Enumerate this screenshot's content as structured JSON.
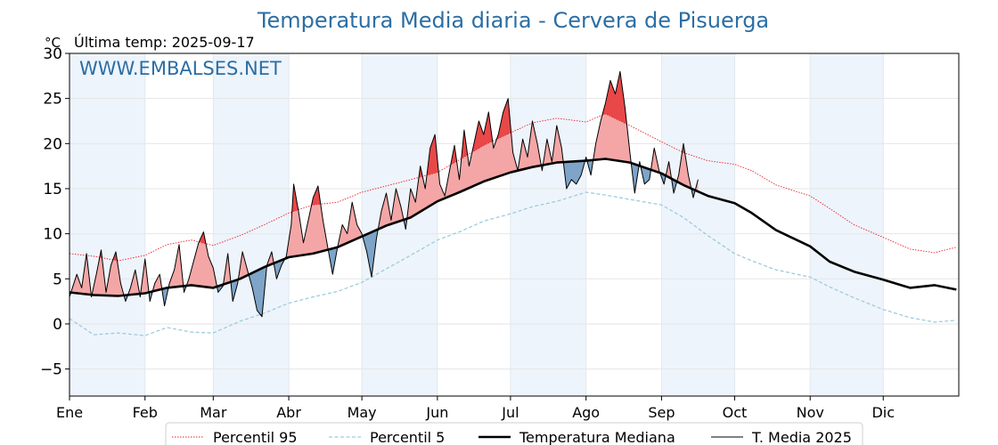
{
  "chart_data": {
    "type": "line",
    "title": "Temperatura Media diaria - Cervera de Pisuerga",
    "unit_label": "°C",
    "subtitle": "Última temp: 2025-09-17",
    "watermark": "WWW.EMBALSES.NET",
    "ylim": [
      -8,
      30
    ],
    "yticks": [
      "−5",
      "0",
      "5",
      "10",
      "15",
      "20",
      "25",
      "30"
    ],
    "ytick_values": [
      -5,
      0,
      5,
      10,
      15,
      20,
      25,
      30
    ],
    "months": [
      "Ene",
      "Feb",
      "Mar",
      "Abr",
      "May",
      "Jun",
      "Jul",
      "Ago",
      "Sep",
      "Oct",
      "Nov",
      "Dic"
    ],
    "month_start_days": [
      0,
      31,
      59,
      90,
      120,
      151,
      181,
      212,
      243,
      273,
      304,
      334
    ],
    "grid": true,
    "legend_position": "bottom",
    "colors": {
      "p95": "#e8202a",
      "p5": "#9ccce0",
      "median": "#000000",
      "current": "#000000",
      "above_fill": "#f4a6a6",
      "above_fill_p95": "#e84848",
      "below_fill": "#7ea4c8",
      "below_fill_p5": "#1e4c88",
      "title": "#2b6ea4",
      "band": "#eef4fb"
    },
    "series": [
      {
        "name": "Percentil 95",
        "style": "dotted-red",
        "points": [
          [
            0,
            7.8
          ],
          [
            10,
            7.5
          ],
          [
            20,
            7.0
          ],
          [
            31,
            7.6
          ],
          [
            40,
            8.8
          ],
          [
            50,
            9.3
          ],
          [
            59,
            8.7
          ],
          [
            70,
            9.8
          ],
          [
            80,
            11.0
          ],
          [
            90,
            12.3
          ],
          [
            100,
            13.2
          ],
          [
            110,
            13.5
          ],
          [
            120,
            14.6
          ],
          [
            130,
            15.3
          ],
          [
            140,
            16.0
          ],
          [
            151,
            16.8
          ],
          [
            160,
            18.2
          ],
          [
            170,
            19.8
          ],
          [
            181,
            21.2
          ],
          [
            190,
            22.3
          ],
          [
            200,
            22.8
          ],
          [
            212,
            22.4
          ],
          [
            220,
            23.3
          ],
          [
            230,
            22.0
          ],
          [
            243,
            20.2
          ],
          [
            252,
            19.0
          ],
          [
            262,
            18.1
          ],
          [
            273,
            17.7
          ],
          [
            280,
            17.0
          ],
          [
            290,
            15.4
          ],
          [
            304,
            14.2
          ],
          [
            312,
            12.8
          ],
          [
            322,
            11.0
          ],
          [
            334,
            9.6
          ],
          [
            345,
            8.3
          ],
          [
            355,
            7.9
          ],
          [
            364,
            8.5
          ]
        ]
      },
      {
        "name": "Percentil 5",
        "style": "dashed-lightblue",
        "points": [
          [
            0,
            0.6
          ],
          [
            10,
            -1.2
          ],
          [
            20,
            -1.0
          ],
          [
            31,
            -1.3
          ],
          [
            40,
            -0.4
          ],
          [
            50,
            -0.9
          ],
          [
            59,
            -1.0
          ],
          [
            70,
            0.3
          ],
          [
            80,
            1.2
          ],
          [
            90,
            2.3
          ],
          [
            100,
            3.0
          ],
          [
            110,
            3.6
          ],
          [
            120,
            4.6
          ],
          [
            130,
            6.1
          ],
          [
            140,
            7.6
          ],
          [
            151,
            9.3
          ],
          [
            160,
            10.2
          ],
          [
            170,
            11.4
          ],
          [
            181,
            12.2
          ],
          [
            190,
            13.0
          ],
          [
            200,
            13.6
          ],
          [
            212,
            14.6
          ],
          [
            220,
            14.3
          ],
          [
            230,
            13.8
          ],
          [
            243,
            13.2
          ],
          [
            252,
            11.8
          ],
          [
            262,
            9.8
          ],
          [
            273,
            7.8
          ],
          [
            280,
            7.0
          ],
          [
            290,
            6.0
          ],
          [
            304,
            5.2
          ],
          [
            312,
            4.1
          ],
          [
            322,
            2.9
          ],
          [
            334,
            1.6
          ],
          [
            345,
            0.7
          ],
          [
            355,
            0.2
          ],
          [
            364,
            0.4
          ]
        ]
      },
      {
        "name": "Temperatura Mediana",
        "style": "thick-black",
        "points": [
          [
            0,
            3.5
          ],
          [
            10,
            3.2
          ],
          [
            20,
            3.1
          ],
          [
            31,
            3.4
          ],
          [
            40,
            4.0
          ],
          [
            50,
            4.3
          ],
          [
            59,
            4.0
          ],
          [
            70,
            5.0
          ],
          [
            80,
            6.3
          ],
          [
            90,
            7.4
          ],
          [
            100,
            7.8
          ],
          [
            110,
            8.5
          ],
          [
            120,
            9.7
          ],
          [
            130,
            10.9
          ],
          [
            140,
            11.8
          ],
          [
            151,
            13.6
          ],
          [
            160,
            14.6
          ],
          [
            170,
            15.8
          ],
          [
            181,
            16.8
          ],
          [
            190,
            17.4
          ],
          [
            200,
            17.9
          ],
          [
            212,
            18.1
          ],
          [
            220,
            18.3
          ],
          [
            230,
            17.9
          ],
          [
            243,
            16.7
          ],
          [
            252,
            15.4
          ],
          [
            262,
            14.2
          ],
          [
            273,
            13.4
          ],
          [
            280,
            12.3
          ],
          [
            290,
            10.4
          ],
          [
            304,
            8.6
          ],
          [
            312,
            6.9
          ],
          [
            322,
            5.8
          ],
          [
            334,
            4.9
          ],
          [
            345,
            4.0
          ],
          [
            355,
            4.3
          ],
          [
            364,
            3.8
          ]
        ]
      },
      {
        "name": "T. Media 2025",
        "style": "thin-black",
        "points": [
          [
            0,
            3.0
          ],
          [
            3,
            5.5
          ],
          [
            5,
            4.0
          ],
          [
            7,
            7.8
          ],
          [
            9,
            3.0
          ],
          [
            11,
            5.5
          ],
          [
            13,
            8.2
          ],
          [
            15,
            3.5
          ],
          [
            17,
            6.5
          ],
          [
            19,
            8.0
          ],
          [
            21,
            4.5
          ],
          [
            23,
            2.5
          ],
          [
            25,
            4.0
          ],
          [
            27,
            6.0
          ],
          [
            29,
            3.0
          ],
          [
            31,
            7.2
          ],
          [
            33,
            2.5
          ],
          [
            35,
            4.5
          ],
          [
            37,
            5.5
          ],
          [
            39,
            2.0
          ],
          [
            41,
            4.5
          ],
          [
            43,
            6.0
          ],
          [
            45,
            8.8
          ],
          [
            47,
            3.5
          ],
          [
            49,
            5.0
          ],
          [
            51,
            7.0
          ],
          [
            53,
            9.0
          ],
          [
            55,
            10.2
          ],
          [
            57,
            7.5
          ],
          [
            59,
            6.2
          ],
          [
            61,
            3.5
          ],
          [
            63,
            4.2
          ],
          [
            65,
            7.8
          ],
          [
            67,
            2.5
          ],
          [
            69,
            4.5
          ],
          [
            71,
            8.0
          ],
          [
            73,
            6.0
          ],
          [
            75,
            4.0
          ],
          [
            77,
            1.5
          ],
          [
            79,
            0.8
          ],
          [
            81,
            6.5
          ],
          [
            83,
            8.0
          ],
          [
            85,
            5.0
          ],
          [
            87,
            6.5
          ],
          [
            89,
            7.5
          ],
          [
            91,
            11.0
          ],
          [
            92,
            15.5
          ],
          [
            94,
            12.5
          ],
          [
            96,
            9.0
          ],
          [
            98,
            11.5
          ],
          [
            100,
            14.0
          ],
          [
            102,
            15.3
          ],
          [
            104,
            11.5
          ],
          [
            106,
            8.5
          ],
          [
            108,
            5.5
          ],
          [
            110,
            8.5
          ],
          [
            112,
            11.0
          ],
          [
            114,
            10.0
          ],
          [
            116,
            13.5
          ],
          [
            118,
            11.0
          ],
          [
            120,
            10.0
          ],
          [
            122,
            8.0
          ],
          [
            124,
            5.2
          ],
          [
            126,
            9.5
          ],
          [
            128,
            12.5
          ],
          [
            130,
            14.5
          ],
          [
            132,
            11.5
          ],
          [
            134,
            15.0
          ],
          [
            136,
            13.0
          ],
          [
            138,
            10.5
          ],
          [
            140,
            15.0
          ],
          [
            142,
            13.5
          ],
          [
            144,
            17.5
          ],
          [
            146,
            15.0
          ],
          [
            148,
            19.5
          ],
          [
            150,
            21.0
          ],
          [
            152,
            15.5
          ],
          [
            154,
            14.2
          ],
          [
            156,
            17.0
          ],
          [
            158,
            19.8
          ],
          [
            160,
            16.0
          ],
          [
            162,
            21.5
          ],
          [
            164,
            17.5
          ],
          [
            166,
            20.0
          ],
          [
            168,
            22.5
          ],
          [
            170,
            21.0
          ],
          [
            172,
            23.5
          ],
          [
            174,
            19.5
          ],
          [
            176,
            21.0
          ],
          [
            178,
            23.5
          ],
          [
            180,
            25.0
          ],
          [
            182,
            19.0
          ],
          [
            184,
            17.0
          ],
          [
            186,
            20.5
          ],
          [
            188,
            18.5
          ],
          [
            190,
            22.5
          ],
          [
            192,
            20.0
          ],
          [
            194,
            17.0
          ],
          [
            196,
            20.5
          ],
          [
            198,
            18.0
          ],
          [
            200,
            22.0
          ],
          [
            202,
            19.5
          ],
          [
            204,
            15.0
          ],
          [
            206,
            16.0
          ],
          [
            208,
            15.5
          ],
          [
            210,
            16.5
          ],
          [
            212,
            18.5
          ],
          [
            214,
            16.5
          ],
          [
            216,
            20.0
          ],
          [
            218,
            22.5
          ],
          [
            220,
            24.5
          ],
          [
            222,
            27.0
          ],
          [
            224,
            25.5
          ],
          [
            226,
            28.0
          ],
          [
            228,
            24.0
          ],
          [
            230,
            19.0
          ],
          [
            232,
            14.5
          ],
          [
            234,
            18.0
          ],
          [
            236,
            15.5
          ],
          [
            238,
            16.0
          ],
          [
            240,
            19.5
          ],
          [
            242,
            17.0
          ],
          [
            244,
            15.5
          ],
          [
            246,
            18.0
          ],
          [
            248,
            14.5
          ],
          [
            250,
            16.5
          ],
          [
            252,
            20.0
          ],
          [
            254,
            16.5
          ],
          [
            256,
            14.0
          ],
          [
            258,
            16.0
          ]
        ]
      }
    ]
  }
}
